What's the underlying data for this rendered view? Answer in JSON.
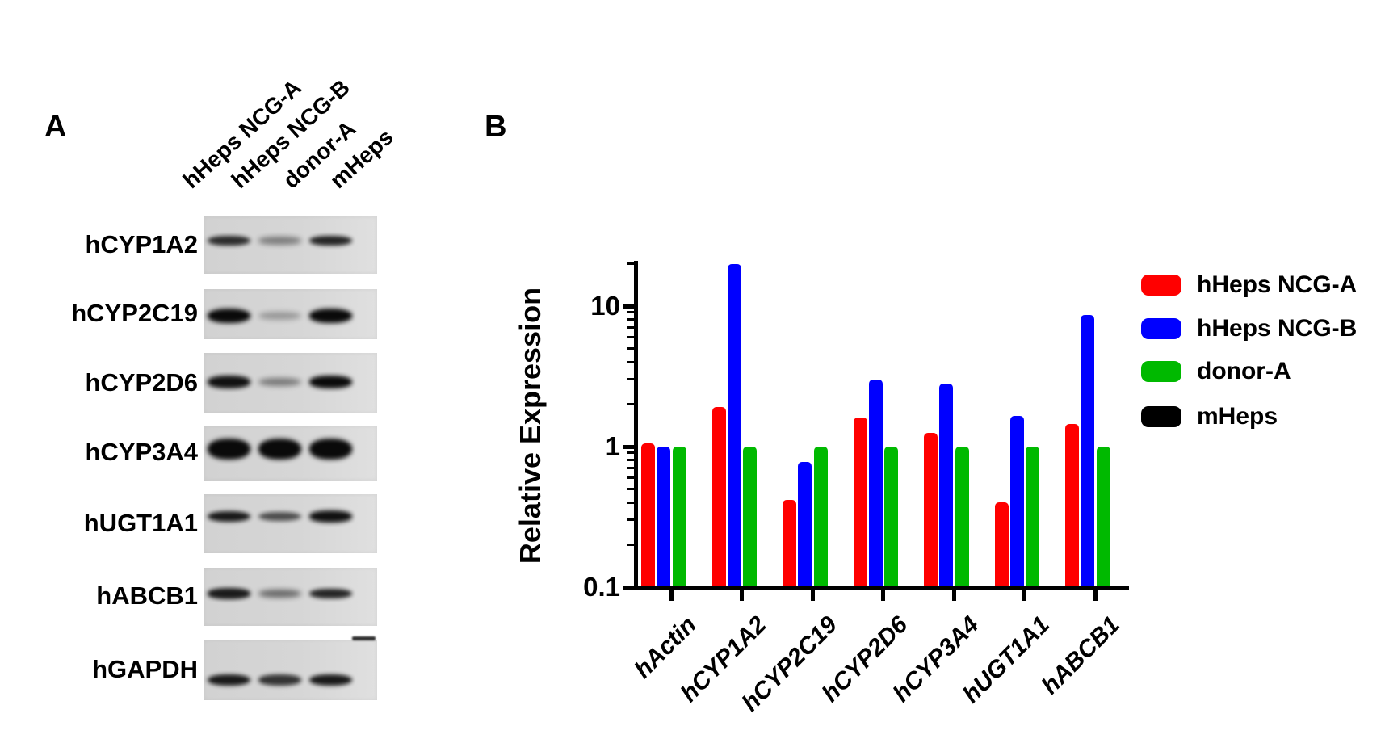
{
  "panel_a": {
    "label": "A",
    "lane_labels": [
      "hHeps NCG-A",
      "hHeps NCG-B",
      "donor-A",
      "mHeps"
    ],
    "rows": [
      {
        "gene": "hCYP1A2",
        "band_intensities": [
          0.75,
          0.3,
          0.8,
          0
        ]
      },
      {
        "gene": "hCYP2C19",
        "band_intensities": [
          0.97,
          0.12,
          0.97,
          0
        ]
      },
      {
        "gene": "hCYP2D6",
        "band_intensities": [
          0.9,
          0.3,
          0.95,
          0
        ]
      },
      {
        "gene": "hCYP3A4",
        "band_intensities": [
          1.0,
          1.0,
          1.0,
          0
        ]
      },
      {
        "gene": "hUGT1A1",
        "band_intensities": [
          0.85,
          0.55,
          0.9,
          0
        ]
      },
      {
        "gene": "hABCB1",
        "band_intensities": [
          0.85,
          0.4,
          0.8,
          0
        ]
      },
      {
        "gene": "hGAPDH",
        "band_intensities": [
          0.85,
          0.7,
          0.85,
          0
        ]
      }
    ]
  },
  "panel_b": {
    "label": "B"
  },
  "chart_data": {
    "type": "bar",
    "title": "",
    "xlabel": "",
    "ylabel": "Relative Expression",
    "yscale": "log",
    "ylim": [
      0.1,
      20
    ],
    "ytick_values": [
      10,
      1,
      0.1
    ],
    "ytick_labels": [
      "10",
      "1",
      "0.1"
    ],
    "grid": false,
    "legend_position": "right",
    "categories": [
      "hActin",
      "hCYP1A2",
      "hCYP2C19",
      "hCYP2D6",
      "hCYP3A4",
      "hUGT1A1",
      "hABCB1"
    ],
    "series": [
      {
        "name": "hHeps NCG-A",
        "color": "#ff0000",
        "values": [
          1.05,
          1.9,
          0.42,
          1.6,
          1.25,
          0.4,
          1.45
        ]
      },
      {
        "name": "hHeps NCG-B",
        "color": "#0000ff",
        "values": [
          1.0,
          20,
          0.78,
          3.0,
          2.8,
          1.65,
          8.7
        ]
      },
      {
        "name": "donor-A",
        "color": "#00b900",
        "values": [
          1.0,
          1.0,
          1.0,
          1.0,
          1.0,
          1.0,
          1.0
        ]
      },
      {
        "name": "mHeps",
        "color": "#000000",
        "values": [
          0,
          0,
          0,
          0,
          0,
          0,
          0
        ]
      }
    ]
  }
}
